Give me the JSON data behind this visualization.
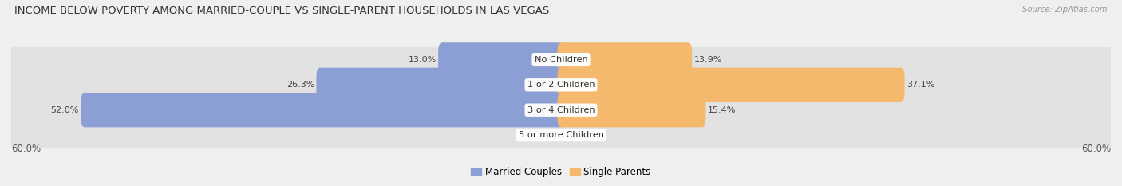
{
  "title": "INCOME BELOW POVERTY AMONG MARRIED-COUPLE VS SINGLE-PARENT HOUSEHOLDS IN LAS VEGAS",
  "source": "Source: ZipAtlas.com",
  "categories": [
    "No Children",
    "1 or 2 Children",
    "3 or 4 Children",
    "5 or more Children"
  ],
  "married_values": [
    13.0,
    26.3,
    52.0,
    0.0
  ],
  "single_values": [
    13.9,
    37.1,
    15.4,
    0.0
  ],
  "max_val": 60.0,
  "married_color": "#8B9FD4",
  "single_color": "#F5B96E",
  "bg_color": "#EFEFEF",
  "row_bg_color": "#E2E2E2",
  "title_fontsize": 9.5,
  "bar_label_fontsize": 8,
  "axis_fontsize": 8.5,
  "legend_labels": [
    "Married Couples",
    "Single Parents"
  ],
  "axis_tick": "60.0%"
}
